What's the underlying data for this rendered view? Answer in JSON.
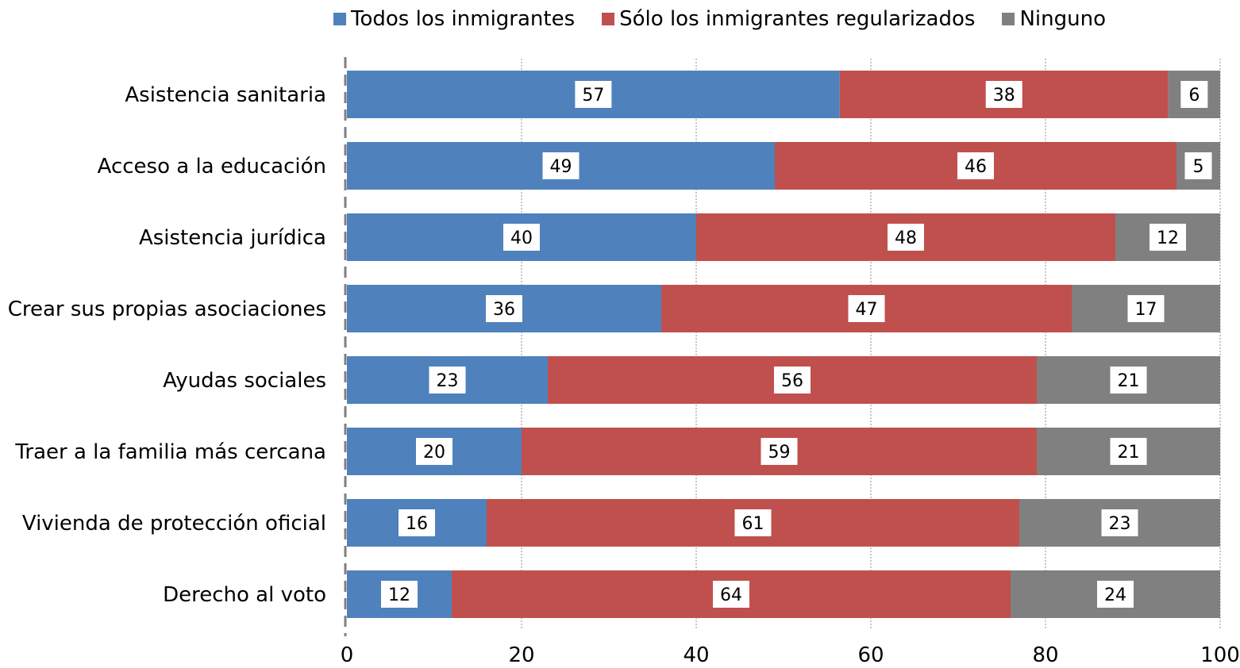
{
  "chart_data": {
    "type": "bar",
    "orientation": "horizontal",
    "stacked": true,
    "title": "",
    "xlabel": "",
    "ylabel": "",
    "xlim": [
      0,
      100
    ],
    "xticks": [
      0,
      20,
      40,
      60,
      80,
      100
    ],
    "grid": "vertical dotted",
    "legend_position": "top",
    "categories": [
      "Asistencia sanitaria",
      "Acceso a la educación",
      "Asistencia jurídica",
      "Crear sus propias asociaciones",
      "Ayudas sociales",
      "Traer a la familia más cercana",
      "Vivienda de protección oficial",
      "Derecho al voto"
    ],
    "series": [
      {
        "name": "Todos los inmigrantes",
        "color": "#4f81bd",
        "values": [
          57,
          49,
          40,
          36,
          23,
          20,
          16,
          12
        ]
      },
      {
        "name": "Sólo los inmigrantes regularizados",
        "color": "#c0504d",
        "values": [
          38,
          46,
          48,
          47,
          56,
          59,
          61,
          64
        ]
      },
      {
        "name": "Ninguno",
        "color": "#808080",
        "values": [
          6,
          5,
          12,
          17,
          21,
          21,
          23,
          24
        ]
      }
    ]
  }
}
